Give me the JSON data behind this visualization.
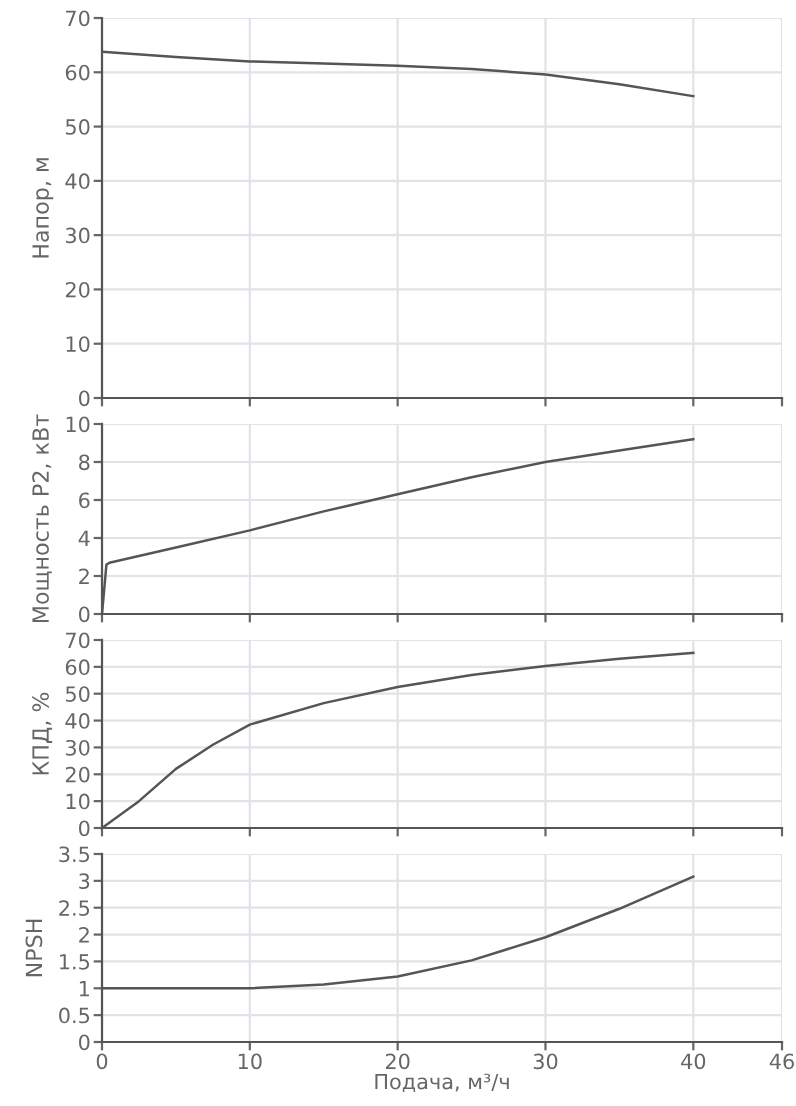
{
  "chart_data": [
    {
      "type": "line",
      "ylabel": "Напор, м",
      "x": [
        0,
        5,
        10,
        15,
        20,
        25,
        30,
        35,
        40
      ],
      "series": [
        {
          "color": "#555555",
          "values": [
            63.8,
            62.8,
            62.0,
            61.6,
            61.2,
            60.6,
            59.6,
            57.8,
            55.6
          ]
        }
      ],
      "xlim": [
        0,
        46
      ],
      "xticks": [
        0,
        10,
        20,
        30,
        40,
        46
      ],
      "ylim": [
        0,
        70
      ],
      "yticks": [
        0,
        10,
        20,
        30,
        40,
        50,
        60,
        70
      ],
      "grid": true,
      "tick_labels": "y",
      "marker": "none",
      "line_style": "solid"
    },
    {
      "type": "line",
      "ylabel": "Мощность P2, кВт",
      "x": [
        0,
        0.3,
        0.5,
        5,
        10,
        15,
        20,
        25,
        30,
        35,
        40
      ],
      "series": [
        {
          "color": "#555555",
          "values": [
            0,
            2.6,
            2.7,
            3.5,
            4.4,
            5.4,
            6.3,
            7.2,
            8.0,
            8.6,
            9.2
          ]
        }
      ],
      "xlim": [
        0,
        46
      ],
      "xticks": [
        0,
        10,
        20,
        30,
        40,
        46
      ],
      "ylim": [
        0,
        10
      ],
      "yticks": [
        0,
        2,
        4,
        6,
        8,
        10
      ],
      "grid": true,
      "tick_labels": "y",
      "marker": "none",
      "line_style": "solid"
    },
    {
      "type": "line",
      "ylabel": "КПД, %",
      "x": [
        0,
        2.5,
        5,
        7.5,
        10,
        15,
        20,
        25,
        30,
        35,
        40
      ],
      "series": [
        {
          "color": "#555555",
          "values": [
            0,
            10,
            22,
            31,
            38.5,
            46.5,
            52.5,
            57,
            60.3,
            63,
            65.2
          ]
        }
      ],
      "xlim": [
        0,
        46
      ],
      "xticks": [
        0,
        10,
        20,
        30,
        40,
        46
      ],
      "ylim": [
        0,
        70
      ],
      "yticks": [
        0,
        10,
        20,
        30,
        40,
        50,
        60,
        70
      ],
      "grid": true,
      "tick_labels": "y",
      "marker": "none",
      "line_style": "solid"
    },
    {
      "type": "line",
      "ylabel": "NPSH",
      "xlabel": "Подача, м³/ч",
      "x": [
        0,
        5,
        10,
        15,
        20,
        25,
        30,
        35,
        40
      ],
      "series": [
        {
          "color": "#555555",
          "values": [
            1.0,
            1.0,
            1.0,
            1.07,
            1.22,
            1.52,
            1.95,
            2.48,
            3.08
          ]
        }
      ],
      "xlim": [
        0,
        46
      ],
      "xticks": [
        0,
        10,
        20,
        30,
        40,
        46
      ],
      "ylim": [
        0,
        3.5
      ],
      "yticks": [
        0,
        0.5,
        1,
        1.5,
        2,
        2.5,
        3,
        3.5
      ],
      "grid": true,
      "marker": "none",
      "line_style": "solid"
    }
  ]
}
